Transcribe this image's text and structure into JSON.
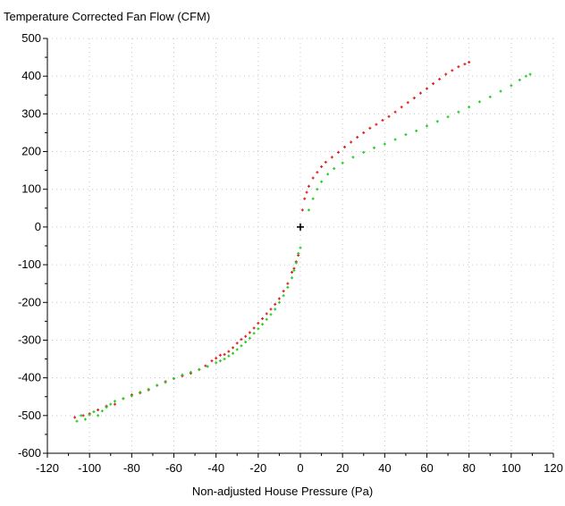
{
  "chart_data": {
    "type": "scatter",
    "title": "Temperature Corrected Fan Flow (CFM)",
    "xlabel": "Non-adjusted House Pressure (Pa)",
    "ylabel": "",
    "xlim": [
      -120,
      120
    ],
    "ylim": [
      -600,
      500
    ],
    "x_ticks": [
      -120,
      -100,
      -80,
      -60,
      -40,
      -20,
      0,
      20,
      40,
      60,
      80,
      100,
      120
    ],
    "y_ticks": [
      -600,
      -500,
      -400,
      -300,
      -200,
      -100,
      0,
      100,
      200,
      300,
      400,
      500
    ],
    "grid": true,
    "legend": "none",
    "origin_marker": [
      0,
      0
    ],
    "colors": {
      "series_red": "#e02020",
      "series_green": "#22cc22",
      "origin_marker": "#000000",
      "grid": "#c8c8c8"
    },
    "series": [
      {
        "color": "#e02020",
        "points": [
          [
            -107,
            -505
          ],
          [
            -103,
            -500
          ],
          [
            -100,
            -495
          ],
          [
            -96,
            -485
          ],
          [
            -92,
            -475
          ],
          [
            -88,
            -470
          ],
          [
            -84,
            -455
          ],
          [
            -80,
            -445
          ],
          [
            -76,
            -440
          ],
          [
            -72,
            -432
          ],
          [
            -68,
            -420
          ],
          [
            -64,
            -410
          ],
          [
            -60,
            -402
          ],
          [
            -56,
            -395
          ],
          [
            -52,
            -388
          ],
          [
            -48,
            -378
          ],
          [
            -45,
            -368
          ],
          [
            -42,
            -355
          ],
          [
            -40,
            -348
          ],
          [
            -38,
            -340
          ],
          [
            -36,
            -338
          ],
          [
            -34,
            -330
          ],
          [
            -32,
            -320
          ],
          [
            -30,
            -308
          ],
          [
            -28,
            -298
          ],
          [
            -26,
            -290
          ],
          [
            -24,
            -280
          ],
          [
            -22,
            -268
          ],
          [
            -20,
            -255
          ],
          [
            -18,
            -243
          ],
          [
            -16,
            -230
          ],
          [
            -14,
            -218
          ],
          [
            -12,
            -205
          ],
          [
            -10,
            -190
          ],
          [
            -8,
            -170
          ],
          [
            -6,
            -150
          ],
          [
            -4,
            -120
          ],
          [
            -3,
            -110
          ],
          [
            -2,
            -92
          ],
          [
            -1,
            -75
          ],
          [
            1,
            45
          ],
          [
            2,
            75
          ],
          [
            3,
            92
          ],
          [
            4,
            108
          ],
          [
            6,
            130
          ],
          [
            8,
            145
          ],
          [
            10,
            160
          ],
          [
            12,
            172
          ],
          [
            15,
            185
          ],
          [
            18,
            198
          ],
          [
            21,
            212
          ],
          [
            24,
            225
          ],
          [
            27,
            238
          ],
          [
            30,
            250
          ],
          [
            33,
            262
          ],
          [
            36,
            272
          ],
          [
            39,
            283
          ],
          [
            42,
            293
          ],
          [
            45,
            305
          ],
          [
            48,
            318
          ],
          [
            51,
            330
          ],
          [
            54,
            342
          ],
          [
            57,
            355
          ],
          [
            60,
            367
          ],
          [
            63,
            380
          ],
          [
            66,
            392
          ],
          [
            69,
            405
          ],
          [
            72,
            415
          ],
          [
            75,
            425
          ],
          [
            78,
            432
          ],
          [
            80,
            437
          ]
        ]
      },
      {
        "color": "#22cc22",
        "points": [
          [
            -106,
            -515
          ],
          [
            -104,
            -500
          ],
          [
            -102,
            -510
          ],
          [
            -100,
            -498
          ],
          [
            -98,
            -490
          ],
          [
            -96,
            -500
          ],
          [
            -94,
            -488
          ],
          [
            -92,
            -478
          ],
          [
            -90,
            -470
          ],
          [
            -88,
            -462
          ],
          [
            -84,
            -455
          ],
          [
            -80,
            -448
          ],
          [
            -76,
            -438
          ],
          [
            -72,
            -430
          ],
          [
            -68,
            -420
          ],
          [
            -64,
            -412
          ],
          [
            -60,
            -402
          ],
          [
            -56,
            -392
          ],
          [
            -52,
            -385
          ],
          [
            -48,
            -378
          ],
          [
            -44,
            -370
          ],
          [
            -40,
            -360
          ],
          [
            -38,
            -355
          ],
          [
            -36,
            -350
          ],
          [
            -34,
            -342
          ],
          [
            -32,
            -335
          ],
          [
            -30,
            -325
          ],
          [
            -28,
            -315
          ],
          [
            -26,
            -305
          ],
          [
            -24,
            -295
          ],
          [
            -22,
            -282
          ],
          [
            -20,
            -270
          ],
          [
            -18,
            -258
          ],
          [
            -16,
            -245
          ],
          [
            -14,
            -232
          ],
          [
            -12,
            -218
          ],
          [
            -10,
            -200
          ],
          [
            -8,
            -182
          ],
          [
            -6,
            -160
          ],
          [
            -4,
            -135
          ],
          [
            -3,
            -115
          ],
          [
            -2,
            -95
          ],
          [
            -1,
            -70
          ],
          [
            0,
            -55
          ],
          [
            4,
            45
          ],
          [
            6,
            75
          ],
          [
            8,
            100
          ],
          [
            10,
            120
          ],
          [
            13,
            140
          ],
          [
            16,
            155
          ],
          [
            20,
            170
          ],
          [
            25,
            185
          ],
          [
            30,
            198
          ],
          [
            35,
            210
          ],
          [
            40,
            220
          ],
          [
            45,
            232
          ],
          [
            50,
            245
          ],
          [
            55,
            255
          ],
          [
            60,
            268
          ],
          [
            65,
            280
          ],
          [
            70,
            292
          ],
          [
            75,
            305
          ],
          [
            80,
            318
          ],
          [
            85,
            332
          ],
          [
            90,
            345
          ],
          [
            95,
            360
          ],
          [
            100,
            375
          ],
          [
            104,
            390
          ],
          [
            107,
            400
          ],
          [
            109,
            405
          ]
        ]
      }
    ]
  }
}
